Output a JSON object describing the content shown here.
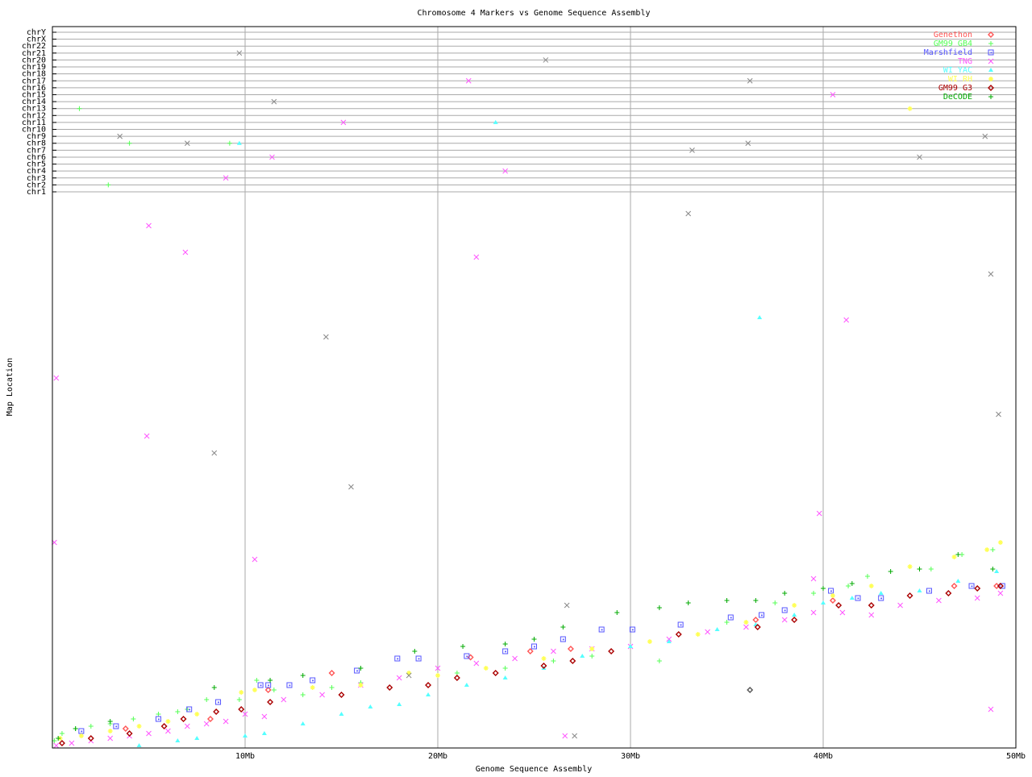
{
  "chart_data": {
    "type": "scatter",
    "title": "Chromosome 4 Markers vs Genome Sequence Assembly",
    "xlabel": "Genome Sequence Assembly",
    "ylabel": "Map Location",
    "xlim": [
      0,
      50
    ],
    "xticks": [
      {
        "v": 10,
        "label": "10Mb"
      },
      {
        "v": 20,
        "label": "20Mb"
      },
      {
        "v": 30,
        "label": "30Mb"
      },
      {
        "v": 40,
        "label": "40Mb"
      },
      {
        "v": 50,
        "label": "50Mb"
      }
    ],
    "ylim_map": [
      0,
      230
    ],
    "chromosome_rows": [
      "chr1",
      "chr2",
      "chr3",
      "chr4",
      "chr5",
      "chr6",
      "chr7",
      "chr8",
      "chr9",
      "chr10",
      "chr11",
      "chr12",
      "chr13",
      "chr14",
      "chr15",
      "chr16",
      "chr17",
      "chr18",
      "chr19",
      "chr20",
      "chr21",
      "chr22",
      "chrX",
      "chrY"
    ],
    "grid": true,
    "legend_placement": "top-right",
    "series": [
      {
        "name": "Genethon",
        "color": "#ff5555",
        "marker": "diamond",
        "points": [
          [
            3.8,
            8
          ],
          [
            8.2,
            12
          ],
          [
            11.2,
            24
          ],
          [
            14.5,
            31
          ],
          [
            21.7,
            37.5
          ],
          [
            24.8,
            40
          ],
          [
            26.9,
            41
          ],
          [
            36.5,
            53
          ],
          [
            40.5,
            61
          ],
          [
            46.8,
            67
          ],
          [
            49.0,
            67
          ]
        ],
        "off_chr": []
      },
      {
        "name": "GM99 GB4",
        "color": "#55ff55",
        "marker": "plus",
        "points": [
          [
            0.1,
            3
          ],
          [
            0.5,
            6
          ],
          [
            1.2,
            8
          ],
          [
            2.0,
            9
          ],
          [
            3.0,
            10
          ],
          [
            4.2,
            12
          ],
          [
            5.5,
            14
          ],
          [
            6.5,
            15
          ],
          [
            7.0,
            16
          ],
          [
            8.0,
            20
          ],
          [
            9.7,
            20
          ],
          [
            10.6,
            28
          ],
          [
            11.5,
            24
          ],
          [
            13.0,
            22
          ],
          [
            14.5,
            25
          ],
          [
            16.0,
            27
          ],
          [
            18.5,
            31
          ],
          [
            21.0,
            31
          ],
          [
            23.5,
            33
          ],
          [
            26.0,
            36
          ],
          [
            28.0,
            38
          ],
          [
            31.5,
            36
          ],
          [
            35.0,
            52
          ],
          [
            37.5,
            60
          ],
          [
            39.5,
            64
          ],
          [
            41.3,
            67
          ],
          [
            42.3,
            71
          ],
          [
            45.6,
            74
          ],
          [
            47.2,
            80
          ],
          [
            48.8,
            82
          ]
        ],
        "off_chr": [
          [
            1.4,
            "chr13"
          ],
          [
            2.9,
            "chr2"
          ],
          [
            4.0,
            "chr8"
          ],
          [
            9.2,
            "chr8"
          ]
        ]
      },
      {
        "name": "Marshfield",
        "color": "#5555ff",
        "marker": "square",
        "points": [
          [
            1.5,
            7
          ],
          [
            3.3,
            9
          ],
          [
            5.5,
            12
          ],
          [
            7.1,
            16
          ],
          [
            8.6,
            19
          ],
          [
            10.8,
            26
          ],
          [
            11.2,
            26
          ],
          [
            12.3,
            26
          ],
          [
            13.5,
            28
          ],
          [
            15.8,
            32
          ],
          [
            17.9,
            37
          ],
          [
            19.0,
            37
          ],
          [
            21.5,
            38
          ],
          [
            23.5,
            40
          ],
          [
            25.0,
            42
          ],
          [
            26.5,
            45
          ],
          [
            28.5,
            49
          ],
          [
            30.1,
            49
          ],
          [
            32.6,
            51
          ],
          [
            35.2,
            54
          ],
          [
            36.8,
            55
          ],
          [
            38.0,
            57
          ],
          [
            40.4,
            65
          ],
          [
            41.8,
            62
          ],
          [
            43.0,
            62
          ],
          [
            45.5,
            65
          ],
          [
            47.7,
            67
          ],
          [
            49.3,
            67
          ]
        ],
        "off_chr": []
      },
      {
        "name": "TNG",
        "color": "#ff55ff",
        "marker": "x",
        "points": [
          [
            0.2,
            1
          ],
          [
            1,
            2
          ],
          [
            2,
            3
          ],
          [
            3,
            4
          ],
          [
            4,
            5
          ],
          [
            5,
            6
          ],
          [
            6,
            7
          ],
          [
            7,
            9
          ],
          [
            8,
            10
          ],
          [
            9,
            11
          ],
          [
            10,
            14
          ],
          [
            11,
            13
          ],
          [
            12,
            20
          ],
          [
            14,
            22
          ],
          [
            16,
            26
          ],
          [
            18,
            29
          ],
          [
            20,
            33
          ],
          [
            22,
            35
          ],
          [
            24,
            37
          ],
          [
            26,
            40
          ],
          [
            28,
            41
          ],
          [
            30,
            42
          ],
          [
            32,
            45
          ],
          [
            34,
            48
          ],
          [
            36,
            50
          ],
          [
            38,
            53
          ],
          [
            39.5,
            56
          ],
          [
            41,
            56
          ],
          [
            42.5,
            55
          ],
          [
            44,
            59
          ],
          [
            46,
            61
          ],
          [
            48,
            62
          ],
          [
            49.2,
            64
          ],
          [
            0.2,
            153
          ],
          [
            0.1,
            85
          ],
          [
            5,
            216
          ],
          [
            6.9,
            205
          ],
          [
            4.9,
            129
          ],
          [
            10.5,
            78
          ],
          [
            22,
            203
          ],
          [
            39.8,
            97
          ],
          [
            41.2,
            177
          ],
          [
            48.7,
            16
          ],
          [
            26.6,
            5
          ],
          [
            39.5,
            70
          ]
        ],
        "off_chr": [
          [
            21.6,
            "chr17"
          ],
          [
            15.1,
            "chr11"
          ],
          [
            11.4,
            "chr6"
          ],
          [
            9.0,
            "chr3"
          ],
          [
            23.5,
            "chr4"
          ],
          [
            40.5,
            "chr15"
          ]
        ]
      },
      {
        "name": "WI YAC",
        "color": "#55ffff",
        "marker": "triangle",
        "points": [
          [
            4.5,
            1
          ],
          [
            6.5,
            3
          ],
          [
            7.5,
            4
          ],
          [
            10,
            5
          ],
          [
            11,
            6
          ],
          [
            13,
            10
          ],
          [
            15,
            14
          ],
          [
            16.5,
            17
          ],
          [
            18,
            18
          ],
          [
            19.5,
            22
          ],
          [
            21.5,
            26
          ],
          [
            23.5,
            29
          ],
          [
            25.5,
            33
          ],
          [
            27.5,
            38
          ],
          [
            30,
            42
          ],
          [
            32,
            44
          ],
          [
            34.5,
            49
          ],
          [
            36.5,
            51
          ],
          [
            38.5,
            55
          ],
          [
            40,
            60
          ],
          [
            41.5,
            62
          ],
          [
            43,
            64
          ],
          [
            45,
            65
          ],
          [
            47,
            69
          ],
          [
            49,
            73
          ],
          [
            36.7,
            178
          ]
        ],
        "off_chr": [
          [
            9.7,
            "chr8"
          ],
          [
            23.0,
            "chr11"
          ]
        ]
      },
      {
        "name": "WI RH",
        "color": "#ffff55",
        "marker": "star",
        "points": [
          [
            0.4,
            4
          ],
          [
            1.5,
            5
          ],
          [
            3.0,
            7
          ],
          [
            4.5,
            9
          ],
          [
            6.0,
            11
          ],
          [
            7.5,
            14
          ],
          [
            9.8,
            23
          ],
          [
            10.5,
            24
          ],
          [
            13.5,
            25
          ],
          [
            16.0,
            26
          ],
          [
            18.5,
            31
          ],
          [
            20.0,
            30
          ],
          [
            22.5,
            33
          ],
          [
            25.5,
            37
          ],
          [
            28.0,
            41
          ],
          [
            31.0,
            44
          ],
          [
            33.5,
            47
          ],
          [
            36.0,
            52
          ],
          [
            38.5,
            59
          ],
          [
            40.5,
            63
          ],
          [
            42.5,
            67
          ],
          [
            44.5,
            75
          ],
          [
            46.8,
            79
          ],
          [
            48.5,
            82
          ],
          [
            49.2,
            85
          ]
        ],
        "off_chr": [
          [
            44.5,
            "chr13"
          ]
        ]
      },
      {
        "name": "GM99 G3",
        "color": "#aa0000",
        "marker": "diamond",
        "points": [
          [
            0.5,
            2
          ],
          [
            2.0,
            4
          ],
          [
            4.0,
            6
          ],
          [
            5.8,
            9
          ],
          [
            6.8,
            12
          ],
          [
            8.5,
            15
          ],
          [
            9.8,
            16
          ],
          [
            11.3,
            19
          ],
          [
            15.0,
            22
          ],
          [
            17.5,
            25
          ],
          [
            19.5,
            26
          ],
          [
            21.0,
            29
          ],
          [
            23.0,
            31
          ],
          [
            25.5,
            34
          ],
          [
            27.0,
            36
          ],
          [
            29.0,
            40
          ],
          [
            32.5,
            47
          ],
          [
            36.6,
            50
          ],
          [
            38.5,
            53
          ],
          [
            40.8,
            59
          ],
          [
            42.5,
            59
          ],
          [
            44.5,
            63
          ],
          [
            46.5,
            64
          ],
          [
            48.0,
            66
          ],
          [
            49.2,
            67
          ]
        ],
        "off_chr": []
      },
      {
        "name": "DeCODE",
        "color": "#00aa00",
        "marker": "plus",
        "points": [
          [
            0.3,
            4
          ],
          [
            1.2,
            8
          ],
          [
            3.0,
            11
          ],
          [
            8.4,
            25
          ],
          [
            11.3,
            28
          ],
          [
            13.0,
            30
          ],
          [
            16.0,
            33
          ],
          [
            18.8,
            40
          ],
          [
            21.3,
            42
          ],
          [
            23.5,
            43
          ],
          [
            25.0,
            45
          ],
          [
            26.5,
            50
          ],
          [
            29.3,
            56
          ],
          [
            31.5,
            58
          ],
          [
            33.0,
            60
          ],
          [
            35.0,
            61
          ],
          [
            36.5,
            61
          ],
          [
            38.0,
            64
          ],
          [
            40.0,
            66
          ],
          [
            41.5,
            68
          ],
          [
            43.5,
            73
          ],
          [
            45.0,
            74
          ],
          [
            47.0,
            80
          ],
          [
            48.8,
            74
          ]
        ],
        "off_chr": []
      },
      {
        "color": "#888888",
        "marker": "x",
        "points": [
          [
            14.2,
            170
          ],
          [
            8.4,
            122
          ],
          [
            15.5,
            108
          ],
          [
            33.0,
            221
          ],
          [
            48.7,
            196
          ],
          [
            49.1,
            138
          ],
          [
            27.1,
            5
          ],
          [
            26.7,
            59
          ],
          [
            18.5,
            30
          ]
        ],
        "off_chr": [
          [
            9.7,
            "chr21"
          ],
          [
            11.5,
            "chr14"
          ],
          [
            36.2,
            "chr17"
          ],
          [
            33.2,
            "chr7"
          ],
          [
            36.1,
            "chr8"
          ],
          [
            45.0,
            "chr6"
          ],
          [
            48.4,
            "chr9"
          ],
          [
            25.6,
            "chr20"
          ],
          [
            3.5,
            "chr9"
          ],
          [
            7.0,
            "chr8"
          ]
        ]
      },
      {
        "color": "#555555",
        "marker": "diamond",
        "points": [
          [
            36.2,
            24
          ]
        ],
        "off_chr": []
      }
    ]
  }
}
